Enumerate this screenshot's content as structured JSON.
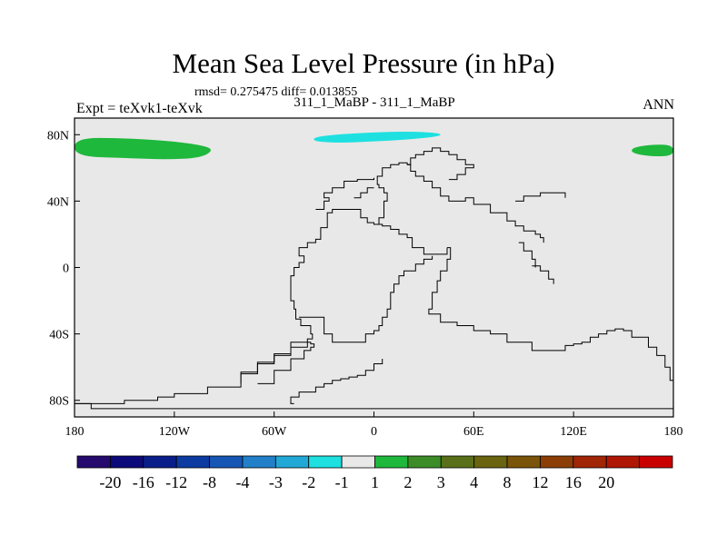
{
  "title": "Mean Sea Level Pressure (in hPa)",
  "stats": "rmsd= 0.275475 diff= 0.013855",
  "subtitle": "311_1_MaBP - 311_1_MaBP",
  "experiment": "Expt = teXvk1-teXvk",
  "season": "ANN",
  "chart_data": {
    "type": "heatmap",
    "title": "Mean Sea Level Pressure (in hPa)",
    "xlim": [
      -180,
      180
    ],
    "ylim": [
      -90,
      90
    ],
    "x_ticks": [
      {
        "value": -180,
        "label": "180"
      },
      {
        "value": -120,
        "label": "120W"
      },
      {
        "value": -60,
        "label": "60W"
      },
      {
        "value": 0,
        "label": "0"
      },
      {
        "value": 60,
        "label": "60E"
      },
      {
        "value": 120,
        "label": "120E"
      },
      {
        "value": 180,
        "label": "180"
      }
    ],
    "y_ticks": [
      {
        "value": 80,
        "label": "80N"
      },
      {
        "value": 40,
        "label": "40N"
      },
      {
        "value": 0,
        "label": "0"
      },
      {
        "value": -40,
        "label": "40S"
      },
      {
        "value": -80,
        "label": "80S"
      }
    ],
    "background_color": "#e8e8e8",
    "colorbar": {
      "colors": [
        "#260a6e",
        "#0c0a7a",
        "#0a1e8a",
        "#0c3aa0",
        "#1656b4",
        "#2280c8",
        "#22a8d6",
        "#1ee0e0",
        "#e8e8e8",
        "#1eb83c",
        "#3c8c28",
        "#5a7018",
        "#6a6410",
        "#7a5408",
        "#8c3e06",
        "#a02606",
        "#b01604",
        "#c80000"
      ],
      "labels": [
        "-20",
        "-16",
        "-12",
        "-8",
        "-4",
        "-3",
        "-2",
        "-1",
        "1",
        "2",
        "3",
        "4",
        "8",
        "12",
        "16",
        "20"
      ]
    },
    "anomaly_regions": [
      {
        "name": "north-atlantic-positive",
        "color": "#1eb83c",
        "level": "1 to 2",
        "polygon": [
          [
            -180,
            67
          ],
          [
            -180,
            78
          ],
          [
            -150,
            78
          ],
          [
            -120,
            76
          ],
          [
            -100,
            73
          ],
          [
            -97,
            70
          ],
          [
            -105,
            66
          ],
          [
            -125,
            65
          ],
          [
            -150,
            66
          ]
        ]
      },
      {
        "name": "arctic-negative",
        "color": "#1ee0e0",
        "level": "-2 to -1",
        "polygon": [
          [
            -37,
            76
          ],
          [
            -35,
            79
          ],
          [
            -10,
            81
          ],
          [
            20,
            82
          ],
          [
            40,
            81
          ],
          [
            40,
            79
          ],
          [
            20,
            77
          ],
          [
            0,
            76
          ],
          [
            -20,
            75
          ]
        ]
      },
      {
        "name": "siberia-positive",
        "color": "#1eb83c",
        "level": "1 to 2",
        "polygon": [
          [
            155,
            69
          ],
          [
            155,
            72
          ],
          [
            165,
            74
          ],
          [
            180,
            74
          ],
          [
            180,
            67
          ],
          [
            165,
            67
          ]
        ]
      }
    ],
    "coastlines": [
      [
        [
          -180,
          -82
        ],
        [
          -160,
          -82
        ],
        [
          -150,
          -80
        ],
        [
          -130,
          -78
        ],
        [
          -120,
          -76
        ],
        [
          -100,
          -72
        ],
        [
          -80,
          -63
        ],
        [
          -70,
          -57
        ],
        [
          -60,
          -53
        ],
        [
          -50,
          -48
        ],
        [
          -40,
          -43
        ],
        [
          -37,
          -40
        ],
        [
          -38,
          -35
        ],
        [
          -44,
          -31
        ],
        [
          -47,
          -25
        ],
        [
          -48,
          -20
        ],
        [
          -50,
          -10
        ],
        [
          -50,
          -5
        ],
        [
          -48,
          0
        ],
        [
          -45,
          3
        ],
        [
          -42,
          7
        ],
        [
          -45,
          8
        ],
        [
          -45,
          12
        ],
        [
          -40,
          15
        ],
        [
          -35,
          17
        ],
        [
          -32,
          24
        ],
        [
          -28,
          28
        ],
        [
          -28,
          33
        ],
        [
          -25,
          35
        ],
        [
          -15,
          35
        ],
        [
          -8,
          30
        ],
        [
          -4,
          27
        ],
        [
          0,
          26
        ],
        [
          5,
          25
        ],
        [
          10,
          23
        ],
        [
          15,
          20
        ],
        [
          20,
          18
        ],
        [
          23,
          12
        ],
        [
          30,
          8
        ],
        [
          37,
          8
        ],
        [
          44,
          12
        ]
      ],
      [
        [
          -180,
          -82
        ],
        [
          -170,
          -85
        ],
        [
          -150,
          -85
        ],
        [
          -100,
          -85
        ],
        [
          -60,
          -85
        ],
        [
          0,
          -85
        ],
        [
          60,
          -85
        ],
        [
          120,
          -85
        ],
        [
          180,
          -85
        ]
      ],
      [
        [
          -45,
          -30
        ],
        [
          -30,
          -40
        ],
        [
          -25,
          -45
        ],
        [
          -15,
          -45
        ],
        [
          -5,
          -40
        ],
        [
          0,
          -38
        ],
        [
          3,
          -35
        ],
        [
          5,
          -30
        ],
        [
          8,
          -25
        ],
        [
          10,
          -20
        ],
        [
          10,
          -15
        ],
        [
          12,
          -10
        ],
        [
          15,
          -5
        ],
        [
          18,
          -2
        ],
        [
          25,
          2
        ],
        [
          30,
          5
        ],
        [
          35,
          7
        ]
      ],
      [
        [
          -70,
          -70
        ],
        [
          -60,
          -62
        ],
        [
          -50,
          -55
        ],
        [
          -42,
          -50
        ],
        [
          -38,
          -48
        ],
        [
          -36,
          -46
        ],
        [
          -38,
          -45
        ],
        [
          -50,
          -52
        ],
        [
          -60,
          -58
        ],
        [
          -70,
          -64
        ],
        [
          -80,
          -70
        ]
      ],
      [
        [
          -48,
          -82
        ],
        [
          -50,
          -78
        ],
        [
          -45,
          -75
        ],
        [
          -35,
          -72
        ],
        [
          -30,
          -70
        ],
        [
          -25,
          -68
        ],
        [
          -20,
          -67
        ],
        [
          -15,
          -66
        ],
        [
          -10,
          -65
        ],
        [
          -5,
          -62
        ],
        [
          0,
          -58
        ],
        [
          5,
          -55
        ]
      ],
      [
        [
          44,
          12
        ],
        [
          46,
          5
        ],
        [
          44,
          -2
        ],
        [
          40,
          -8
        ],
        [
          38,
          -15
        ],
        [
          35,
          -25
        ],
        [
          33,
          -28
        ],
        [
          40,
          -33
        ],
        [
          50,
          -35
        ],
        [
          60,
          -38
        ],
        [
          70,
          -40
        ],
        [
          80,
          -45
        ],
        [
          95,
          -50
        ],
        [
          105,
          -50
        ],
        [
          115,
          -47
        ],
        [
          120,
          -46
        ],
        [
          125,
          -45
        ],
        [
          130,
          -42
        ],
        [
          135,
          -40
        ],
        [
          140,
          -38
        ],
        [
          145,
          -37
        ],
        [
          150,
          -38
        ],
        [
          155,
          -42
        ],
        [
          165,
          -48
        ],
        [
          170,
          -53
        ],
        [
          175,
          -60
        ],
        [
          178,
          -68
        ],
        [
          180,
          -73
        ]
      ],
      [
        [
          0,
          26
        ],
        [
          3,
          30
        ],
        [
          6,
          35
        ],
        [
          6,
          40
        ],
        [
          8,
          45
        ],
        [
          6,
          48
        ],
        [
          3,
          50
        ],
        [
          2,
          55
        ],
        [
          5,
          60
        ],
        [
          10,
          62
        ],
        [
          15,
          63
        ],
        [
          20,
          62
        ],
        [
          22,
          58
        ],
        [
          25,
          55
        ],
        [
          30,
          52
        ],
        [
          35,
          48
        ],
        [
          40,
          43
        ],
        [
          45,
          40
        ],
        [
          55,
          42
        ],
        [
          60,
          38
        ],
        [
          70,
          33
        ],
        [
          80,
          28
        ],
        [
          85,
          25
        ],
        [
          90,
          22
        ],
        [
          97,
          20
        ],
        [
          100,
          18
        ],
        [
          102,
          15
        ]
      ],
      [
        [
          20,
          62
        ],
        [
          22,
          66
        ],
        [
          25,
          68
        ],
        [
          30,
          70
        ],
        [
          35,
          72
        ],
        [
          40,
          70
        ],
        [
          45,
          68
        ],
        [
          50,
          65
        ],
        [
          55,
          62
        ],
        [
          60,
          60
        ],
        [
          55,
          56
        ],
        [
          50,
          53
        ],
        [
          45,
          53
        ]
      ],
      [
        [
          -35,
          35
        ],
        [
          -30,
          40
        ],
        [
          -27,
          42
        ],
        [
          -30,
          45
        ],
        [
          -25,
          48
        ],
        [
          -18,
          52
        ],
        [
          -10,
          53
        ],
        [
          0,
          54
        ]
      ],
      [
        [
          95,
          1
        ],
        [
          100,
          -2
        ],
        [
          105,
          -7
        ],
        [
          108,
          -10
        ]
      ],
      [
        [
          -12,
          42
        ],
        [
          -8,
          45
        ],
        [
          -4,
          48
        ],
        [
          0,
          48
        ]
      ],
      [
        [
          85,
          40
        ],
        [
          90,
          43
        ],
        [
          100,
          45
        ],
        [
          110,
          45
        ],
        [
          115,
          42
        ]
      ],
      [
        [
          87,
          15
        ],
        [
          90,
          10
        ],
        [
          95,
          5
        ],
        [
          97,
          0
        ]
      ]
    ]
  }
}
